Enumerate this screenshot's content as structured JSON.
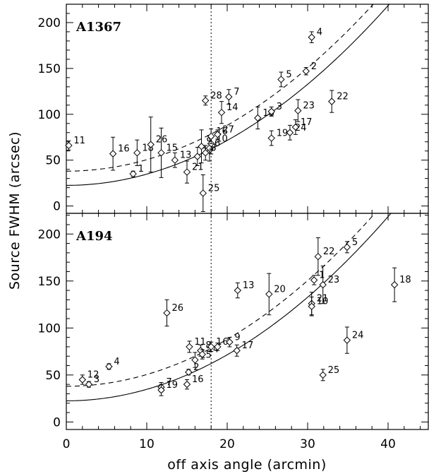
{
  "chart_data": {
    "type": "scatter",
    "xlabel": "off axis angle (arcmin)",
    "ylabel": "Source FWHM (arcsec)",
    "xlim": [
      0,
      45
    ],
    "x_ticks": [
      0,
      10,
      20,
      30,
      40
    ],
    "vertical_line_x": 18,
    "panels": [
      {
        "title": "A1367",
        "ylim": [
          -8,
          220
        ],
        "y_ticks": [
          0,
          50,
          100,
          150,
          200
        ],
        "fit_solid": {
          "a": 22.5,
          "b": 0.1225
        },
        "fit_dashed": {
          "a": 38,
          "b": 0.125
        },
        "points": [
          {
            "label": "11",
            "x": 0.3,
            "y": 66,
            "yerr": 5
          },
          {
            "label": "16",
            "x": 5.8,
            "y": 57,
            "yerr": 18
          },
          {
            "label": "1",
            "x": 8.3,
            "y": 35,
            "yerr": 3
          },
          {
            "label": "18",
            "x": 8.8,
            "y": 58,
            "yerr": 14
          },
          {
            "label": "26",
            "x": 10.5,
            "y": 67,
            "yerr": 30
          },
          {
            "label": "15",
            "x": 11.8,
            "y": 58,
            "yerr": 27
          },
          {
            "label": "13",
            "x": 13.5,
            "y": 50,
            "yerr": 8
          },
          {
            "label": "21",
            "x": 15.0,
            "y": 37,
            "yerr": 12
          },
          {
            "label": "12",
            "x": 16.3,
            "y": 54,
            "yerr": 10
          },
          {
            "label": "9",
            "x": 16.8,
            "y": 65,
            "yerr": 18
          },
          {
            "label": "8",
            "x": 17.3,
            "y": 58,
            "yerr": 8
          },
          {
            "label": "25",
            "x": 17.0,
            "y": 14,
            "yerr": 20
          },
          {
            "label": "6",
            "x": 17.8,
            "y": 63,
            "yerr": 14
          },
          {
            "label": "10",
            "x": 18.0,
            "y": 68,
            "yerr": 6
          },
          {
            "label": "16",
            "x": 18.0,
            "y": 76,
            "yerr": 8
          },
          {
            "label": "27",
            "x": 18.8,
            "y": 78,
            "yerr": 5
          },
          {
            "label": "28",
            "x": 17.3,
            "y": 115,
            "yerr": 5
          },
          {
            "label": "7",
            "x": 20.2,
            "y": 119,
            "yerr": 8
          },
          {
            "label": "14",
            "x": 19.3,
            "y": 102,
            "yerr": 12
          },
          {
            "label": "18",
            "x": 23.8,
            "y": 96,
            "yerr": 12
          },
          {
            "label": "3",
            "x": 25.5,
            "y": 103,
            "yerr": 5
          },
          {
            "label": "19",
            "x": 25.5,
            "y": 74,
            "yerr": 8
          },
          {
            "label": "17",
            "x": 28.5,
            "y": 86,
            "yerr": 8
          },
          {
            "label": "24",
            "x": 27.8,
            "y": 80,
            "yerr": 8
          },
          {
            "label": "23",
            "x": 28.8,
            "y": 104,
            "yerr": 12
          },
          {
            "label": "5",
            "x": 26.7,
            "y": 138,
            "yerr": 8
          },
          {
            "label": "2",
            "x": 29.8,
            "y": 147,
            "yerr": 4
          },
          {
            "label": "4",
            "x": 30.5,
            "y": 184,
            "yerr": 6
          },
          {
            "label": "22",
            "x": 33.0,
            "y": 114,
            "yerr": 12
          }
        ]
      },
      {
        "title": "A194",
        "ylim": [
          -8,
          222
        ],
        "y_ticks": [
          0,
          50,
          100,
          150,
          200
        ],
        "fit_solid": {
          "a": 22.5,
          "b": 0.1225
        },
        "fit_dashed": {
          "a": 38,
          "b": 0.125
        },
        "points": [
          {
            "label": "12",
            "x": 2.0,
            "y": 45,
            "yerr": 5
          },
          {
            "label": "3",
            "x": 2.8,
            "y": 40,
            "yerr": 3
          },
          {
            "label": "4",
            "x": 5.3,
            "y": 59,
            "yerr": 3
          },
          {
            "label": "7",
            "x": 11.8,
            "y": 37,
            "yerr": 5
          },
          {
            "label": "19",
            "x": 11.8,
            "y": 34,
            "yerr": 6
          },
          {
            "label": "16",
            "x": 15.0,
            "y": 40,
            "yerr": 5
          },
          {
            "label": "2",
            "x": 15.2,
            "y": 53,
            "yerr": 3
          },
          {
            "label": "26",
            "x": 12.5,
            "y": 116,
            "yerr": 14
          },
          {
            "label": "11",
            "x": 15.3,
            "y": 80,
            "yerr": 6
          },
          {
            "label": "15",
            "x": 16.0,
            "y": 66,
            "yerr": 8
          },
          {
            "label": "8",
            "x": 16.7,
            "y": 76,
            "yerr": 6
          },
          {
            "label": "14",
            "x": 16.9,
            "y": 72,
            "yerr": 5
          },
          {
            "label": "1",
            "x": 18.0,
            "y": 80,
            "yerr": 5
          },
          {
            "label": "6",
            "x": 18.8,
            "y": 80,
            "yerr": 4
          },
          {
            "label": "9",
            "x": 20.3,
            "y": 85,
            "yerr": 5
          },
          {
            "label": "17",
            "x": 21.2,
            "y": 76,
            "yerr": 6
          },
          {
            "label": "13",
            "x": 21.3,
            "y": 140,
            "yerr": 8
          },
          {
            "label": "20",
            "x": 25.2,
            "y": 136,
            "yerr": 22
          },
          {
            "label": "21",
            "x": 30.5,
            "y": 126,
            "yerr": 12
          },
          {
            "label": "10",
            "x": 30.5,
            "y": 123,
            "yerr": 10
          },
          {
            "label": "1",
            "x": 30.8,
            "y": 151,
            "yerr": 5
          },
          {
            "label": "22",
            "x": 31.3,
            "y": 176,
            "yerr": 20
          },
          {
            "label": "23",
            "x": 31.9,
            "y": 146,
            "yerr": 20
          },
          {
            "label": "5",
            "x": 34.9,
            "y": 186,
            "yerr": 6
          },
          {
            "label": "25",
            "x": 31.9,
            "y": 50,
            "yerr": 6
          },
          {
            "label": "24",
            "x": 34.9,
            "y": 87,
            "yerr": 14
          },
          {
            "label": "18",
            "x": 40.8,
            "y": 146,
            "yerr": 18
          }
        ]
      }
    ]
  }
}
